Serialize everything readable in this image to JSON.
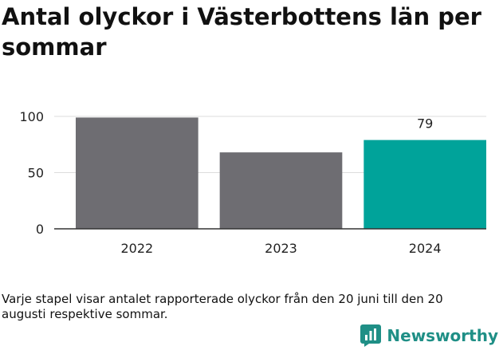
{
  "title": "Antal olyckor i Västerbottens län per sommar",
  "note": "Varje stapel visar antalet rapporterade olyckor från den 20 juni till den 20 augusti respektive sommar.",
  "brand": {
    "name": "Newsworthy",
    "color": "#1f8f86",
    "icon": "newsworthy-logo-icon"
  },
  "chart_data": {
    "type": "bar",
    "categories": [
      "2022",
      "2023",
      "2024"
    ],
    "values": [
      99,
      68,
      79
    ],
    "data_labels": [
      "",
      "",
      "79"
    ],
    "colors": [
      "#6e6d72",
      "#6e6d72",
      "#00a39a"
    ],
    "yticks": [
      "0",
      "50",
      "100"
    ],
    "ylim": [
      0,
      100
    ],
    "grid": true,
    "title": "",
    "xlabel": "",
    "ylabel": ""
  }
}
